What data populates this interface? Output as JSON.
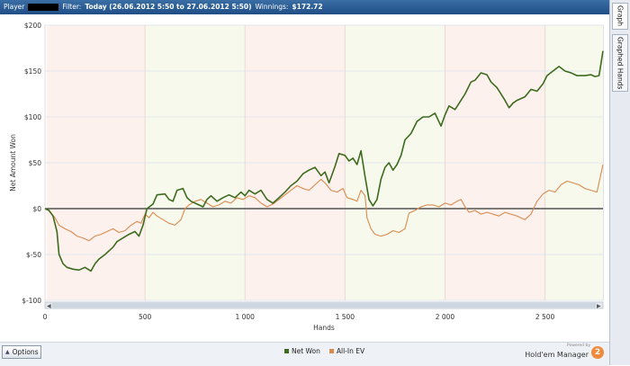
{
  "header": {
    "player_label": "Player",
    "filter_label": "Filter:",
    "filter_value": "Today (26.06.2012 5:50 to 27.06.2012 5:50)",
    "winnings_label": "Winnings:",
    "winnings_value": "$172.72"
  },
  "tabs": [
    {
      "label": "Graph",
      "active": true
    },
    {
      "label": "Graphed Hands",
      "active": false
    }
  ],
  "footer": {
    "options_label": "Options",
    "brand_powered": "Powered by",
    "brand_name": "Hold'em Manager",
    "brand_badge": "2"
  },
  "colors": {
    "net_won": "#3d6b1e",
    "all_in_ev": "#d98a4e",
    "band_pink": "#fdf1ee",
    "band_green": "#f7f9ec",
    "zero_line": "#333333"
  },
  "chart_data": {
    "type": "line",
    "xlabel": "Hands",
    "ylabel": "Net Amount Won",
    "xlim": [
      0,
      2790
    ],
    "ylim": [
      -100,
      200
    ],
    "x_ticks": [
      {
        "v": 0,
        "label": "0"
      },
      {
        "v": 500,
        "label": "500"
      },
      {
        "v": 1000,
        "label": "1 000"
      },
      {
        "v": 1500,
        "label": "1 500"
      },
      {
        "v": 2000,
        "label": "2 000"
      },
      {
        "v": 2500,
        "label": "2 500"
      }
    ],
    "y_ticks": [
      {
        "v": 200,
        "label": "$200"
      },
      {
        "v": 150,
        "label": "$150"
      },
      {
        "v": 100,
        "label": "$100"
      },
      {
        "v": 50,
        "label": "$50"
      },
      {
        "v": 0,
        "label": "$0"
      },
      {
        "v": -50,
        "label": "$-50"
      },
      {
        "v": -100,
        "label": "$-100"
      }
    ],
    "legend_position": "bottom-center",
    "series": [
      {
        "name": "Net Won",
        "points": [
          [
            0,
            0
          ],
          [
            20,
            -2
          ],
          [
            40,
            -8
          ],
          [
            60,
            -25
          ],
          [
            70,
            -50
          ],
          [
            90,
            -60
          ],
          [
            110,
            -64
          ],
          [
            140,
            -66
          ],
          [
            170,
            -67
          ],
          [
            200,
            -64
          ],
          [
            230,
            -68
          ],
          [
            250,
            -60
          ],
          [
            270,
            -55
          ],
          [
            300,
            -50
          ],
          [
            320,
            -46
          ],
          [
            340,
            -42
          ],
          [
            360,
            -36
          ],
          [
            390,
            -32
          ],
          [
            420,
            -28
          ],
          [
            450,
            -25
          ],
          [
            470,
            -30
          ],
          [
            490,
            -18
          ],
          [
            510,
            0
          ],
          [
            540,
            5
          ],
          [
            560,
            15
          ],
          [
            600,
            16
          ],
          [
            620,
            10
          ],
          [
            640,
            8
          ],
          [
            660,
            20
          ],
          [
            690,
            22
          ],
          [
            710,
            12
          ],
          [
            730,
            8
          ],
          [
            760,
            5
          ],
          [
            790,
            2
          ],
          [
            810,
            10
          ],
          [
            830,
            14
          ],
          [
            860,
            8
          ],
          [
            890,
            12
          ],
          [
            920,
            15
          ],
          [
            950,
            12
          ],
          [
            980,
            18
          ],
          [
            1000,
            14
          ],
          [
            1020,
            20
          ],
          [
            1050,
            16
          ],
          [
            1080,
            20
          ],
          [
            1110,
            10
          ],
          [
            1140,
            6
          ],
          [
            1170,
            12
          ],
          [
            1200,
            18
          ],
          [
            1230,
            25
          ],
          [
            1260,
            30
          ],
          [
            1290,
            38
          ],
          [
            1320,
            42
          ],
          [
            1350,
            45
          ],
          [
            1380,
            36
          ],
          [
            1400,
            40
          ],
          [
            1420,
            28
          ],
          [
            1450,
            46
          ],
          [
            1470,
            60
          ],
          [
            1500,
            58
          ],
          [
            1520,
            52
          ],
          [
            1540,
            55
          ],
          [
            1560,
            48
          ],
          [
            1580,
            63
          ],
          [
            1600,
            35
          ],
          [
            1620,
            10
          ],
          [
            1640,
            3
          ],
          [
            1660,
            10
          ],
          [
            1680,
            32
          ],
          [
            1700,
            45
          ],
          [
            1720,
            50
          ],
          [
            1740,
            42
          ],
          [
            1760,
            48
          ],
          [
            1780,
            58
          ],
          [
            1800,
            75
          ],
          [
            1830,
            82
          ],
          [
            1860,
            95
          ],
          [
            1890,
            100
          ],
          [
            1920,
            100
          ],
          [
            1950,
            104
          ],
          [
            1980,
            90
          ],
          [
            2000,
            102
          ],
          [
            2020,
            112
          ],
          [
            2050,
            108
          ],
          [
            2080,
            118
          ],
          [
            2100,
            125
          ],
          [
            2130,
            138
          ],
          [
            2150,
            140
          ],
          [
            2180,
            148
          ],
          [
            2210,
            146
          ],
          [
            2230,
            138
          ],
          [
            2260,
            132
          ],
          [
            2300,
            118
          ],
          [
            2320,
            110
          ],
          [
            2340,
            115
          ],
          [
            2360,
            118
          ],
          [
            2380,
            120
          ],
          [
            2400,
            122
          ],
          [
            2430,
            130
          ],
          [
            2460,
            128
          ],
          [
            2490,
            136
          ],
          [
            2510,
            145
          ],
          [
            2540,
            150
          ],
          [
            2570,
            155
          ],
          [
            2600,
            150
          ],
          [
            2630,
            148
          ],
          [
            2660,
            145
          ],
          [
            2700,
            145
          ],
          [
            2730,
            146
          ],
          [
            2750,
            144
          ],
          [
            2770,
            145
          ],
          [
            2790,
            172
          ]
        ]
      },
      {
        "name": "All-In EV",
        "points": [
          [
            0,
            0
          ],
          [
            20,
            -2
          ],
          [
            50,
            -10
          ],
          [
            70,
            -18
          ],
          [
            100,
            -22
          ],
          [
            130,
            -25
          ],
          [
            160,
            -30
          ],
          [
            190,
            -32
          ],
          [
            220,
            -35
          ],
          [
            250,
            -30
          ],
          [
            280,
            -28
          ],
          [
            310,
            -25
          ],
          [
            340,
            -22
          ],
          [
            370,
            -26
          ],
          [
            400,
            -24
          ],
          [
            430,
            -18
          ],
          [
            460,
            -14
          ],
          [
            480,
            -16
          ],
          [
            500,
            -6
          ],
          [
            520,
            -10
          ],
          [
            540,
            -4
          ],
          [
            560,
            -8
          ],
          [
            590,
            -12
          ],
          [
            620,
            -16
          ],
          [
            650,
            -18
          ],
          [
            680,
            -12
          ],
          [
            700,
            0
          ],
          [
            720,
            4
          ],
          [
            750,
            8
          ],
          [
            780,
            10
          ],
          [
            810,
            6
          ],
          [
            840,
            2
          ],
          [
            870,
            4
          ],
          [
            900,
            8
          ],
          [
            930,
            6
          ],
          [
            960,
            12
          ],
          [
            990,
            10
          ],
          [
            1020,
            14
          ],
          [
            1050,
            12
          ],
          [
            1080,
            6
          ],
          [
            1110,
            2
          ],
          [
            1140,
            5
          ],
          [
            1170,
            10
          ],
          [
            1200,
            15
          ],
          [
            1230,
            20
          ],
          [
            1260,
            25
          ],
          [
            1290,
            22
          ],
          [
            1320,
            20
          ],
          [
            1350,
            26
          ],
          [
            1380,
            32
          ],
          [
            1400,
            28
          ],
          [
            1430,
            20
          ],
          [
            1460,
            18
          ],
          [
            1490,
            22
          ],
          [
            1510,
            12
          ],
          [
            1540,
            10
          ],
          [
            1560,
            8
          ],
          [
            1580,
            20
          ],
          [
            1600,
            14
          ],
          [
            1610,
            -10
          ],
          [
            1630,
            -22
          ],
          [
            1650,
            -28
          ],
          [
            1680,
            -30
          ],
          [
            1710,
            -28
          ],
          [
            1740,
            -24
          ],
          [
            1770,
            -26
          ],
          [
            1800,
            -22
          ],
          [
            1820,
            -5
          ],
          [
            1850,
            -2
          ],
          [
            1880,
            2
          ],
          [
            1910,
            4
          ],
          [
            1940,
            4
          ],
          [
            1970,
            2
          ],
          [
            2000,
            6
          ],
          [
            2030,
            4
          ],
          [
            2060,
            8
          ],
          [
            2080,
            10
          ],
          [
            2100,
            2
          ],
          [
            2120,
            -4
          ],
          [
            2150,
            -2
          ],
          [
            2180,
            -6
          ],
          [
            2210,
            -4
          ],
          [
            2240,
            -6
          ],
          [
            2270,
            -8
          ],
          [
            2300,
            -4
          ],
          [
            2330,
            -6
          ],
          [
            2360,
            -8
          ],
          [
            2400,
            -12
          ],
          [
            2430,
            -6
          ],
          [
            2460,
            8
          ],
          [
            2490,
            16
          ],
          [
            2520,
            20
          ],
          [
            2550,
            18
          ],
          [
            2580,
            26
          ],
          [
            2610,
            30
          ],
          [
            2640,
            28
          ],
          [
            2670,
            26
          ],
          [
            2700,
            22
          ],
          [
            2730,
            20
          ],
          [
            2760,
            18
          ],
          [
            2790,
            48
          ]
        ]
      }
    ]
  }
}
